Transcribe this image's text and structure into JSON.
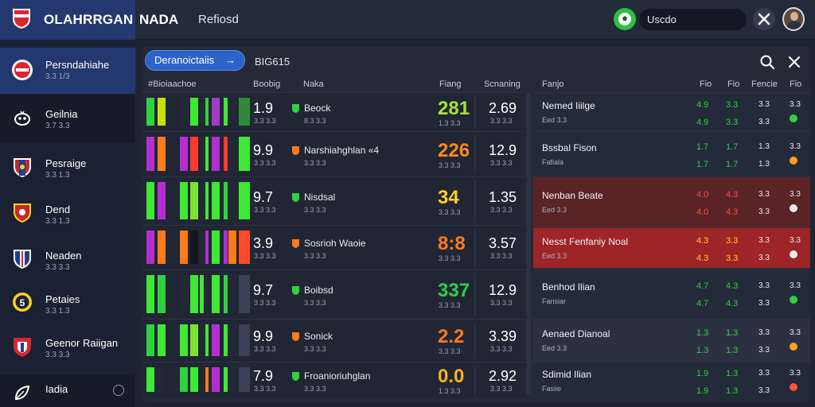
{
  "header": {
    "brand": "OLAHRRGAN",
    "nav_primary": "NADA",
    "nav_secondary": "Refiosd",
    "search_text": "Uscdo",
    "icons": {
      "logo": "shield-logo-icon",
      "live": "soccer-ball-icon",
      "tools": "crossed-tools-icon",
      "avatar": "user-avatar"
    }
  },
  "sidebar": {
    "items": [
      {
        "label": "Persndahiahe",
        "sub": "3.3 1/3",
        "icon": "no-entry-crest-icon"
      },
      {
        "label": "Geilnia",
        "sub": "3.7 3.3",
        "icon": "mask-crest-icon"
      },
      {
        "label": "Pesraige",
        "sub": "3.3 1.3",
        "icon": "striped-shield-icon"
      },
      {
        "label": "Dend",
        "sub": "3.3 1.3",
        "icon": "red-shield-icon"
      },
      {
        "label": "Neaden",
        "sub": "3.3 3.3",
        "icon": "blue-shield-icon"
      },
      {
        "label": "Petaies",
        "sub": "3.3 1.3",
        "icon": "yellow-ring-crest-icon"
      },
      {
        "label": "Geenor Raiigan",
        "sub": "3.3 3.3",
        "icon": "red-crest-icon"
      },
      {
        "label": "Iadia",
        "sub": "",
        "icon": "leaf-icon"
      }
    ]
  },
  "panel": {
    "filter_button": "Deranoictaiis",
    "filter_value": "BIG615",
    "columns": [
      "#Bioiaachoe",
      "Boobig",
      "Naka",
      "Fiang",
      "Scnaning",
      "Fanjo",
      "Fio",
      "Fio",
      "Fencie",
      "Fio"
    ],
    "rows": [
      {
        "num": "1.9",
        "num_sub": "3.3 3.3",
        "team": "Beock",
        "team_sub": "8.3 3.3",
        "big": "281",
        "big_color": "#a6e23a",
        "big_sub": "1.3 3.3",
        "odds": "2.69",
        "odds_sub": "3.3 3.3",
        "bars": [
          "#2fd23f",
          "#c8e00c",
          "#222836",
          "#3ee834",
          "#222836",
          "#2fd23f",
          "#a23cc7",
          "#3ee834",
          "#222836",
          "#2e8a3a"
        ]
      },
      {
        "num": "9.9",
        "num_sub": "3.3 3.3",
        "team": "Narshiahghlan «4",
        "team_sub": "3.3 3.3",
        "big": "226",
        "big_color": "#ff8a1e",
        "big_sub": "3.3 3.3",
        "odds": "12.9",
        "odds_sub": "3.3 3.3",
        "bars": [
          "#b52fd0",
          "#ff7a1a",
          "#b52fd0",
          "#ff3a2f",
          "#222836",
          "#3ee834",
          "#b52fd0",
          "#ff3a2f",
          "#222836",
          "#3ee834"
        ]
      },
      {
        "num": "9.7",
        "num_sub": "3.3 3.3",
        "team": "Nisdsal",
        "team_sub": "3.3 3.3",
        "big": "34",
        "big_color": "#ffd21e",
        "big_sub": "3.3 3.3",
        "odds": "1.35",
        "odds_sub": "3.3 3.3",
        "bars": [
          "#3ee834",
          "#b52fd0",
          "#3ee834",
          "#7be234",
          "#222836",
          "#3ee834",
          "#3ee834",
          "#2fd23f",
          "#222836",
          "#3ee834"
        ]
      },
      {
        "num": "3.9",
        "num_sub": "3.3 3.3",
        "team": "Sosrioh Waoie",
        "team_sub": "3.3 3.3",
        "big": "8:8",
        "big_color": "#ff7a1a",
        "big_sub": "3.3 3.3",
        "odds": "3.57",
        "odds_sub": "3.3 3.3",
        "bars": [
          "#b52fd0",
          "#ff7a1a",
          "#ff7a1a",
          "#111620",
          "#222836",
          "#b52fd0",
          "#3ee834",
          "#b52fd0",
          "#ff7a1a",
          "#ff4a2a"
        ]
      },
      {
        "num": "9.7",
        "num_sub": "3.3 3.3",
        "team": "Boibsd",
        "team_sub": "3.3 3.3",
        "big": "337",
        "big_color": "#2fd23f",
        "big_sub": "3.3 3.3",
        "odds": "12.9",
        "odds_sub": "3.3 3.3",
        "bars": [
          "#3ee834",
          "#2fd23f",
          "#222836",
          "#3ee834",
          "#3ee834",
          "#222836",
          "#3ee834",
          "#2fd23f",
          "#222836",
          "#3b4256"
        ]
      },
      {
        "num": "9.9",
        "num_sub": "3.3 3.3",
        "team": "Sonick",
        "team_sub": "3.3 3.3",
        "big": "2.2",
        "big_color": "#ff7a1a",
        "big_sub": "3.3 3.3",
        "odds": "3.39",
        "odds_sub": "3.3 3.3",
        "bars": [
          "#2fd23f",
          "#3ee834",
          "#3ee834",
          "#7be234",
          "#222836",
          "#3ee834",
          "#b52fd0",
          "#3ee834",
          "#222836",
          "#3b4256"
        ]
      },
      {
        "num": "7.9",
        "num_sub": "3.3 3.3",
        "team": "Froanioriuhglan",
        "team_sub": "3.3 3.3",
        "big": "0.0",
        "big_color": "#ffb020",
        "big_sub": "1.3 3.3",
        "odds": "2.92",
        "odds_sub": "3.3 3.3",
        "bars": [
          "#3ee834",
          "#222836",
          "#2fd23f",
          "#3ee834",
          "#222836",
          "#ff7a1a",
          "#b52fd0",
          "#3ee834",
          "#222836",
          "#3b4256"
        ]
      }
    ],
    "right_rows": [
      {
        "name": "Nemed Iiilge",
        "sub": "Eed 3.3",
        "c1": "4.9",
        "c1_color": "#2fd23f",
        "c2": "3.3",
        "c2_color": "#2fd23f",
        "c3": "3.3",
        "c4": "3.3",
        "dot": "#2fd23f",
        "bg": "#232a39"
      },
      {
        "name": "Bssbal Fison",
        "sub": "Fafiala",
        "c1": "1.7",
        "c1_color": "#2fd23f",
        "c2": "1.7",
        "c2_color": "#2fd23f",
        "c3": "1.3",
        "c4": "3.3",
        "dot": "#ffa020",
        "bg": "#232a39"
      },
      {
        "name": "Nenban Beate",
        "sub": "Eed 3.3",
        "c1": "4.0",
        "c1_color": "#ff5040",
        "c2": "4.3",
        "c2_color": "#ff5040",
        "c3": "3.3",
        "c4": "3.3",
        "dot": "#e8ebf0",
        "bg": "#5a2326"
      },
      {
        "name": "Nesst Fenfaniy Noal",
        "sub": "Eed 3.3",
        "c1": "4.3",
        "c1_color": "#ffd21e",
        "c2": "3.3",
        "c2_color": "#ffd21e",
        "c3": "3.3",
        "c4": "3.3",
        "dot": "#e8ebf0",
        "bg": "#9d2427"
      },
      {
        "name": "Benhod Ilian",
        "sub": "Fansiar",
        "c1": "4.7",
        "c1_color": "#2fd23f",
        "c2": "4.3",
        "c2_color": "#2fd23f",
        "c3": "3.3",
        "c4": "3.3",
        "dot": "#2fd23f",
        "bg": "#232a39"
      },
      {
        "name": "Aenaed Dianoal",
        "sub": "Eed 3.3",
        "c1": "1.3",
        "c1_color": "#2fd23f",
        "c2": "1.3",
        "c2_color": "#2fd23f",
        "c3": "3.3",
        "c4": "3.3",
        "dot": "#ffa020",
        "bg": "#2c3142"
      },
      {
        "name": "Sdimid Ilian",
        "sub": "Fasiie",
        "c1": "1.9",
        "c1_color": "#2fd23f",
        "c2": "1.3",
        "c2_color": "#2fd23f",
        "c3": "3.3",
        "c4": "3.3",
        "dot": "#ff5040",
        "bg": "#232a39"
      }
    ]
  }
}
